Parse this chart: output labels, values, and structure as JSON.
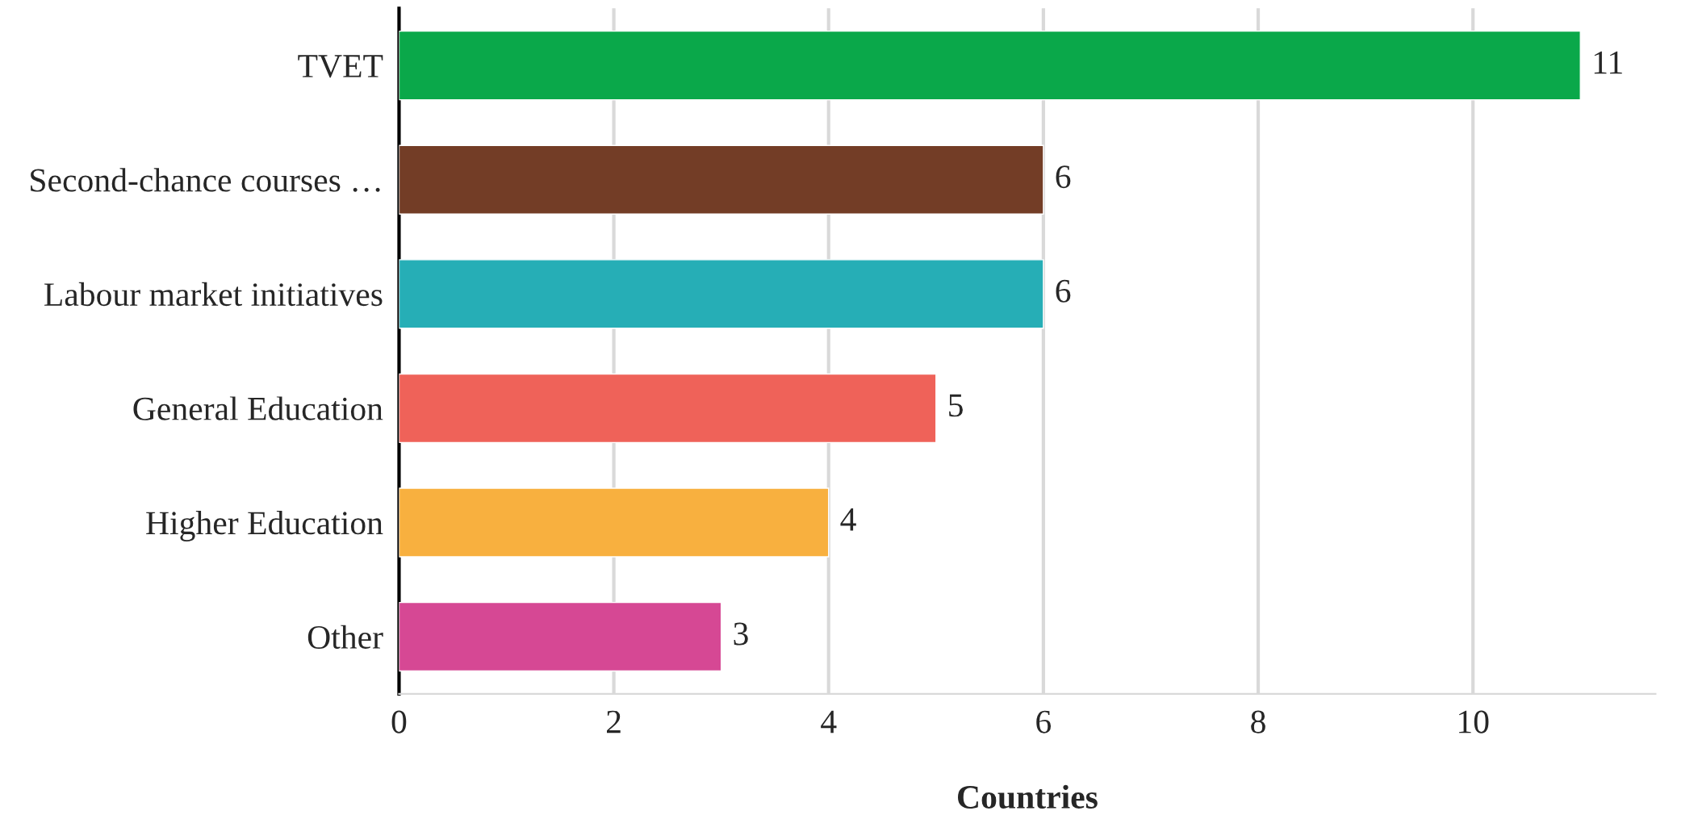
{
  "chart_data": {
    "type": "bar",
    "orientation": "horizontal",
    "xlabel": "Countries",
    "categories": [
      "TVET",
      "Second-chance courses …",
      "Labour market initiatives",
      "General Education",
      "Higher Education",
      "Other"
    ],
    "values": [
      11,
      6,
      6,
      5,
      4,
      3
    ],
    "colors": [
      "#0aa84a",
      "#733d26",
      "#26aeb6",
      "#ef6259",
      "#f8b03f",
      "#d64894"
    ],
    "xlim": [
      0,
      11.7
    ],
    "xticks": [
      0,
      2,
      4,
      6,
      8,
      10
    ],
    "grid": "x",
    "data_labels": true
  }
}
